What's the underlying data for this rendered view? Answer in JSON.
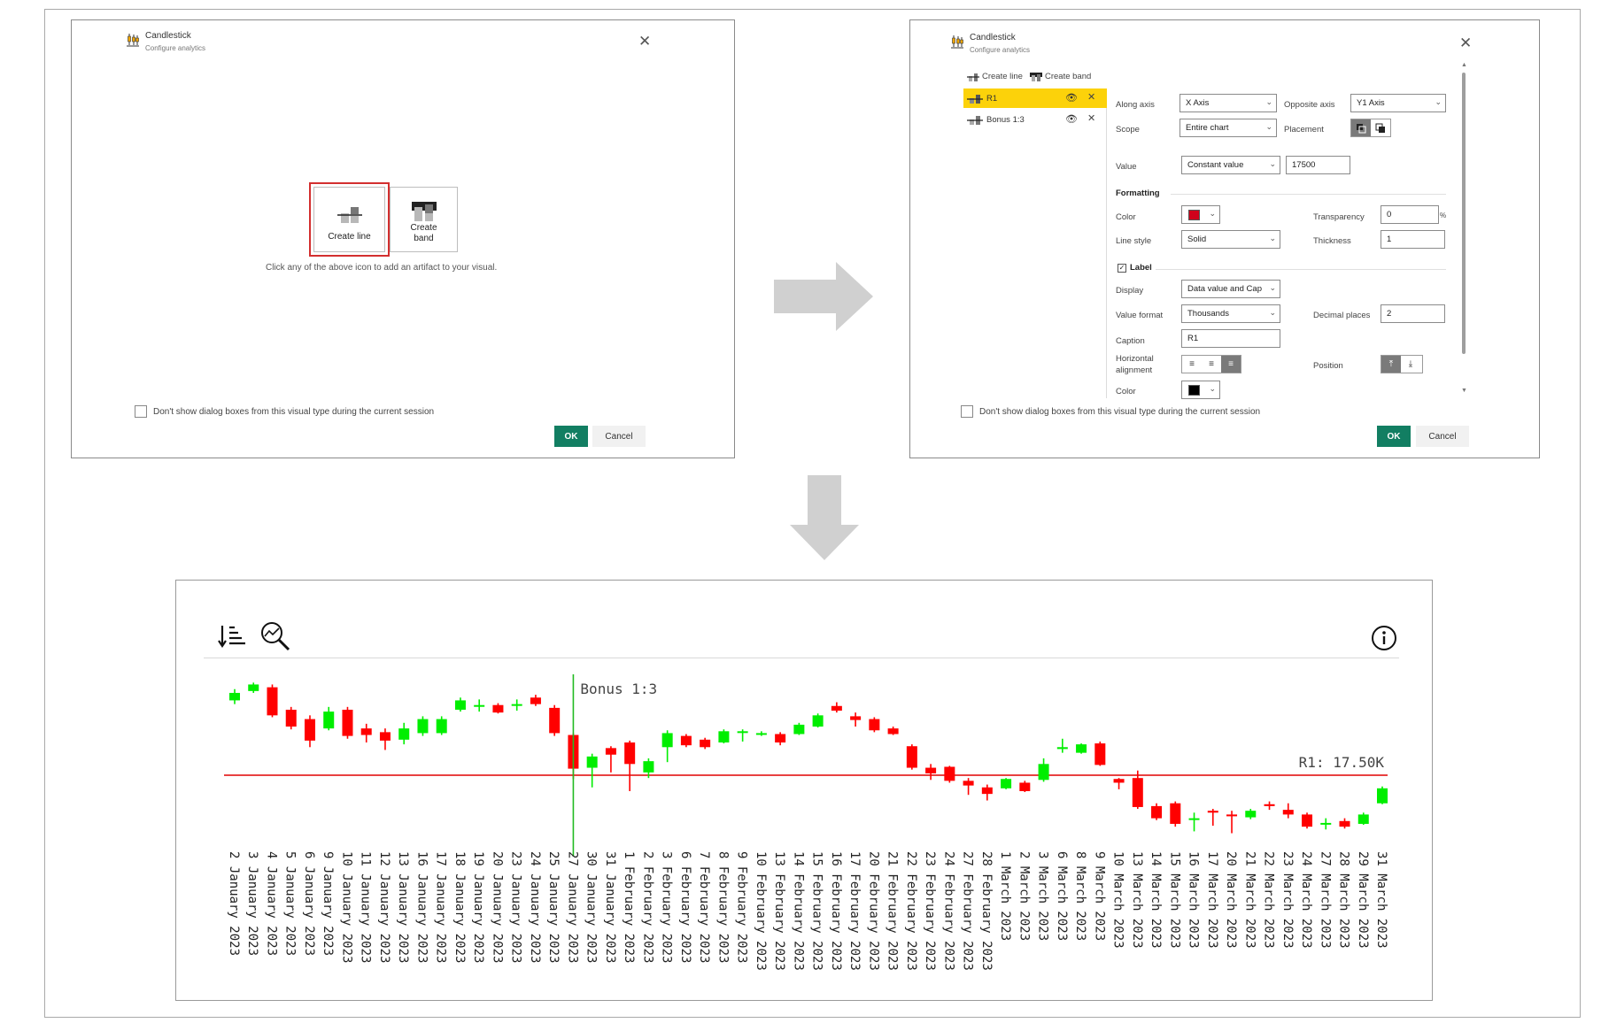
{
  "dialog1": {
    "title": "Candlestick",
    "subtitle": "Configure analytics",
    "tile_line": "Create line",
    "tile_band_1": "Create",
    "tile_band_2": "band",
    "hint": "Click any of the above icon to add an artifact to your visual.",
    "checkbox_label": "Don't show dialog boxes from this visual type during the current session",
    "ok": "OK",
    "cancel": "Cancel"
  },
  "dialog2": {
    "title": "Candlestick",
    "subtitle": "Configure analytics",
    "toolbar_create_line": "Create line",
    "toolbar_create_band": "Create band",
    "items": [
      {
        "label": "R1",
        "active": true
      },
      {
        "label": "Bonus 1:3",
        "active": false
      }
    ],
    "along_axis_label": "Along axis",
    "along_axis_value": "X Axis",
    "opposite_axis_label": "Opposite axis",
    "opposite_axis_value": "Y1 Axis",
    "scope_label": "Scope",
    "scope_value": "Entire chart",
    "placement_label": "Placement",
    "value_label": "Value",
    "value_type": "Constant value",
    "value_input": "17500",
    "formatting_header": "Formatting",
    "color_label": "Color",
    "transparency_label": "Transparency",
    "transparency_value": "0",
    "percent": "%",
    "line_style_label": "Line style",
    "line_style_value": "Solid",
    "thickness_label": "Thickness",
    "thickness_value": "1",
    "label_header": "Label",
    "display_label": "Display",
    "display_value": "Data value and Cap",
    "value_format_label": "Value format",
    "value_format_value": "Thousands",
    "decimal_label": "Decimal places",
    "decimal_value": "2",
    "caption_label": "Caption",
    "caption_value": "R1",
    "halign_label_1": "Horizontal",
    "halign_label_2": "alignment",
    "position_label": "Position",
    "color2_label": "Color",
    "checkbox_label": "Don't show dialog boxes from this visual type during the current session",
    "ok": "OK",
    "cancel": "Cancel",
    "colors": {
      "line_color": "#d0021b",
      "label_color": "#000000",
      "active_item": "#fcd20a",
      "ok_button": "#127e62"
    }
  },
  "chart": {
    "toolbar_icons": [
      "sort-icon",
      "zoom-icon",
      "info-icon"
    ],
    "chart_data": {
      "type": "candlestick",
      "categories": [
        "2 January 2023",
        "3 January 2023",
        "4 January 2023",
        "5 January 2023",
        "6 January 2023",
        "9 January 2023",
        "10 January 2023",
        "11 January 2023",
        "12 January 2023",
        "13 January 2023",
        "16 January 2023",
        "17 January 2023",
        "18 January 2023",
        "19 January 2023",
        "20 January 2023",
        "23 January 2023",
        "24 January 2023",
        "25 January 2023",
        "27 January 2023",
        "30 January 2023",
        "31 January 2023",
        "1 February 2023",
        "2 February 2023",
        "3 February 2023",
        "6 February 2023",
        "7 February 2023",
        "8 February 2023",
        "9 February 2023",
        "10 February 2023",
        "13 February 2023",
        "14 February 2023",
        "15 February 2023",
        "16 February 2023",
        "17 February 2023",
        "20 February 2023",
        "21 February 2023",
        "22 February 2023",
        "23 February 2023",
        "24 February 2023",
        "27 February 2023",
        "28 February 2023",
        "1 March 2023",
        "2 March 2023",
        "3 March 2023",
        "6 March 2023",
        "8 March 2023",
        "9 March 2023",
        "10 March 2023",
        "13 March 2023",
        "14 March 2023",
        "15 March 2023",
        "16 March 2023",
        "17 March 2023",
        "20 March 2023",
        "21 March 2023",
        "22 March 2023",
        "23 March 2023",
        "24 March 2023",
        "27 March 2023",
        "28 March 2023",
        "29 March 2023",
        "31 March 2023"
      ],
      "candles": [
        {
          "o": 18300,
          "c": 18380,
          "h": 18420,
          "l": 18260
        },
        {
          "o": 18400,
          "c": 18470,
          "h": 18490,
          "l": 18380
        },
        {
          "o": 18440,
          "c": 18140,
          "h": 18470,
          "l": 18120
        },
        {
          "o": 18200,
          "c": 18020,
          "h": 18230,
          "l": 17990
        },
        {
          "o": 18100,
          "c": 17870,
          "h": 18140,
          "l": 17800
        },
        {
          "o": 18000,
          "c": 18180,
          "h": 18230,
          "l": 17980
        },
        {
          "o": 18200,
          "c": 17920,
          "h": 18230,
          "l": 17890
        },
        {
          "o": 18000,
          "c": 17930,
          "h": 18050,
          "l": 17850
        },
        {
          "o": 17960,
          "c": 17870,
          "h": 18000,
          "l": 17770
        },
        {
          "o": 17880,
          "c": 18000,
          "h": 18060,
          "l": 17830
        },
        {
          "o": 17950,
          "c": 18100,
          "h": 18130,
          "l": 17920
        },
        {
          "o": 17950,
          "c": 18100,
          "h": 18130,
          "l": 17930
        },
        {
          "o": 18200,
          "c": 18300,
          "h": 18330,
          "l": 18180
        },
        {
          "o": 18240,
          "c": 18250,
          "h": 18310,
          "l": 18180
        },
        {
          "o": 18250,
          "c": 18170,
          "h": 18270,
          "l": 18160
        },
        {
          "o": 18250,
          "c": 18260,
          "h": 18310,
          "l": 18190
        },
        {
          "o": 18330,
          "c": 18260,
          "h": 18360,
          "l": 18240
        },
        {
          "o": 18220,
          "c": 17950,
          "h": 18250,
          "l": 17920
        },
        {
          "o": 17930,
          "c": 17570,
          "h": 17950,
          "l": 17460
        },
        {
          "o": 17580,
          "c": 17700,
          "h": 17730,
          "l": 17370
        },
        {
          "o": 17790,
          "c": 17720,
          "h": 17810,
          "l": 17530
        },
        {
          "o": 17850,
          "c": 17620,
          "h": 17870,
          "l": 17330
        },
        {
          "o": 17530,
          "c": 17650,
          "h": 17680,
          "l": 17470
        },
        {
          "o": 17800,
          "c": 17950,
          "h": 17980,
          "l": 17640
        },
        {
          "o": 17920,
          "c": 17820,
          "h": 17940,
          "l": 17800
        },
        {
          "o": 17880,
          "c": 17800,
          "h": 17900,
          "l": 17780
        },
        {
          "o": 17850,
          "c": 17970,
          "h": 17990,
          "l": 17840
        },
        {
          "o": 17960,
          "c": 17970,
          "h": 17990,
          "l": 17860
        },
        {
          "o": 17940,
          "c": 17950,
          "h": 17970,
          "l": 17920
        },
        {
          "o": 17940,
          "c": 17850,
          "h": 17960,
          "l": 17820
        },
        {
          "o": 17940,
          "c": 18040,
          "h": 18060,
          "l": 17930
        },
        {
          "o": 18020,
          "c": 18140,
          "h": 18160,
          "l": 18010
        },
        {
          "o": 18240,
          "c": 18190,
          "h": 18280,
          "l": 18170
        },
        {
          "o": 18130,
          "c": 18090,
          "h": 18170,
          "l": 18020
        },
        {
          "o": 18100,
          "c": 17980,
          "h": 18120,
          "l": 17960
        },
        {
          "o": 18000,
          "c": 17940,
          "h": 18020,
          "l": 17930
        },
        {
          "o": 17810,
          "c": 17580,
          "h": 17830,
          "l": 17560
        },
        {
          "o": 17580,
          "c": 17520,
          "h": 17620,
          "l": 17450
        },
        {
          "o": 17590,
          "c": 17440,
          "h": 17600,
          "l": 17420
        },
        {
          "o": 17440,
          "c": 17390,
          "h": 17470,
          "l": 17290
        },
        {
          "o": 17370,
          "c": 17300,
          "h": 17400,
          "l": 17230
        },
        {
          "o": 17360,
          "c": 17460,
          "h": 17470,
          "l": 17350
        },
        {
          "o": 17420,
          "c": 17330,
          "h": 17440,
          "l": 17320
        },
        {
          "o": 17450,
          "c": 17620,
          "h": 17680,
          "l": 17430
        },
        {
          "o": 17780,
          "c": 17800,
          "h": 17890,
          "l": 17740
        },
        {
          "o": 17740,
          "c": 17830,
          "h": 17840,
          "l": 17730
        },
        {
          "o": 17840,
          "c": 17610,
          "h": 17860,
          "l": 17600
        },
        {
          "o": 17460,
          "c": 17420,
          "h": 17470,
          "l": 17350
        },
        {
          "o": 17470,
          "c": 17160,
          "h": 17550,
          "l": 17140
        },
        {
          "o": 17170,
          "c": 17040,
          "h": 17200,
          "l": 17020
        },
        {
          "o": 17200,
          "c": 16980,
          "h": 17220,
          "l": 16950
        },
        {
          "o": 17040,
          "c": 17040,
          "h": 17100,
          "l": 16900
        },
        {
          "o": 17120,
          "c": 17100,
          "h": 17140,
          "l": 16960
        },
        {
          "o": 17080,
          "c": 17070,
          "h": 17120,
          "l": 16880
        },
        {
          "o": 17050,
          "c": 17120,
          "h": 17140,
          "l": 17030
        },
        {
          "o": 17190,
          "c": 17170,
          "h": 17220,
          "l": 17130
        },
        {
          "o": 17130,
          "c": 17080,
          "h": 17200,
          "l": 17040
        },
        {
          "o": 17080,
          "c": 16950,
          "h": 17100,
          "l": 16930
        },
        {
          "o": 16990,
          "c": 16990,
          "h": 17040,
          "l": 16920
        },
        {
          "o": 17010,
          "c": 16950,
          "h": 17040,
          "l": 16930
        },
        {
          "o": 16980,
          "c": 17080,
          "h": 17100,
          "l": 16970
        },
        {
          "o": 17200,
          "c": 17360,
          "h": 17380,
          "l": 17190
        }
      ],
      "ylim": [
        16800,
        18550
      ],
      "reference_lines": [
        {
          "name": "R1",
          "axis": "y",
          "value": 17500,
          "label": "R1: 17.50K",
          "color": "#e00000"
        },
        {
          "name": "Bonus 1:3",
          "axis": "x",
          "category": "27 January 2023",
          "label": "Bonus 1:3",
          "color": "#22bb22"
        }
      ],
      "colors": {
        "up": "#00ee00",
        "down": "#ff0000"
      },
      "grid": false
    }
  }
}
